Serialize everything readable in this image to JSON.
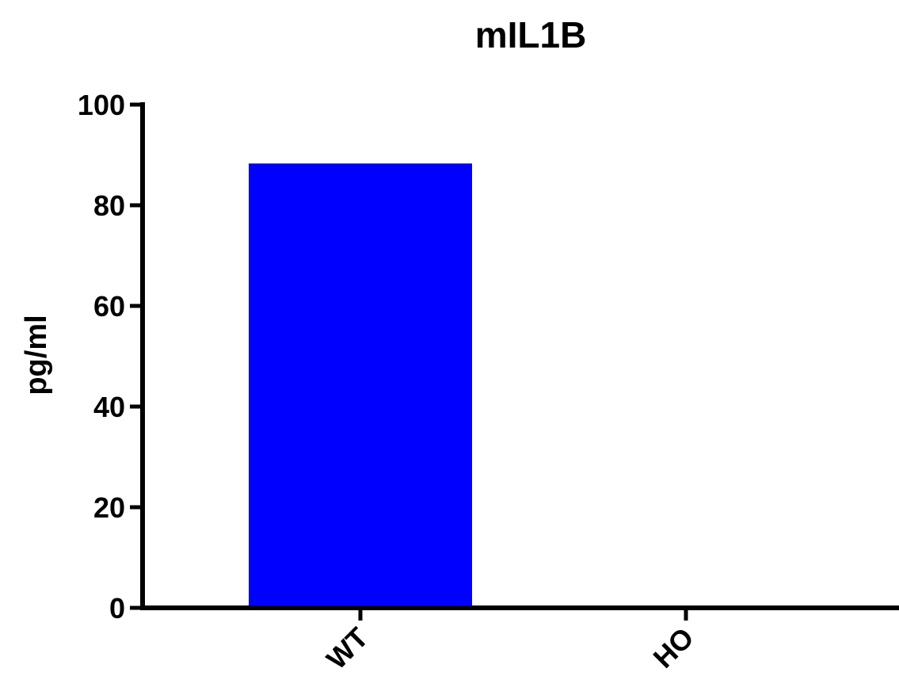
{
  "chart_data": {
    "type": "bar",
    "title": "mIL1B",
    "xlabel": "",
    "ylabel": "pg/ml",
    "categories": [
      "WT",
      "HO"
    ],
    "values": [
      88.3,
      0
    ],
    "ylim": [
      0,
      100
    ],
    "yticks": [
      0,
      20,
      40,
      60,
      80,
      100
    ],
    "ytick_labels": [
      "0",
      "20",
      "40",
      "60",
      "80",
      "100"
    ],
    "bar_color": "#0000FF",
    "axis_color": "#000000",
    "grid": false,
    "legend": "none"
  }
}
